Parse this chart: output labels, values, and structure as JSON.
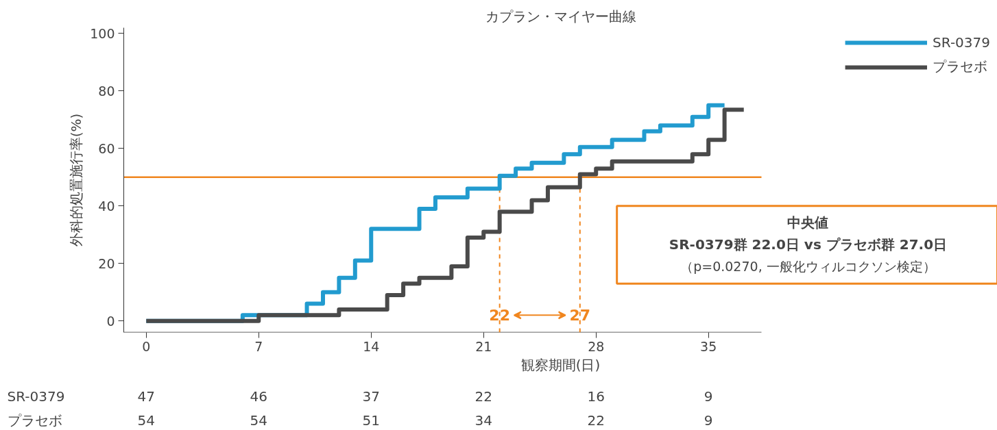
{
  "chart_data": {
    "type": "step",
    "title": "カプラン・マイヤー曲線",
    "xlabel": "観察期間(日)",
    "ylabel": "外科的処置施行率(%)",
    "series": [
      {
        "name": "SR-0379",
        "color": "#229bcf",
        "x": [
          0,
          6,
          10,
          11,
          12,
          13,
          14,
          17,
          18,
          20,
          22,
          23,
          24,
          26,
          27,
          29,
          31,
          32,
          34,
          35,
          36
        ],
        "values": [
          0,
          2,
          6,
          10,
          15,
          21,
          32,
          39,
          43,
          46,
          50.5,
          53,
          55,
          58,
          60.5,
          63,
          66,
          68,
          71,
          75,
          75
        ]
      },
      {
        "name": "プラセボ",
        "color": "#4a4a4a",
        "x": [
          0,
          7,
          12,
          15,
          16,
          17,
          19,
          20,
          21,
          22,
          24,
          25,
          27,
          28,
          29,
          34,
          35,
          36,
          37.2
        ],
        "values": [
          0,
          2,
          4,
          9,
          13,
          15,
          19,
          29,
          31,
          38,
          42,
          46.5,
          51,
          53,
          55.5,
          58,
          63,
          73.5,
          73.5
        ]
      }
    ],
    "xlim": [
      -1.4,
      38.3
    ],
    "xticks": [
      0,
      7,
      14,
      21,
      28,
      35
    ],
    "ylim": [
      -4,
      102
    ],
    "yticks": [
      0,
      20,
      40,
      60,
      80,
      100
    ],
    "grid": false,
    "legend": "top right",
    "line_style": "solid",
    "marker": "none",
    "ref_lines": [
      {
        "axis": "y",
        "value": 50,
        "color": "#f0861f",
        "line_style": "solid"
      },
      {
        "axis": "x",
        "value": 22,
        "label": "22",
        "color": "#f0861f",
        "line_style": "dashed"
      },
      {
        "axis": "x",
        "value": 27,
        "label": "27",
        "color": "#f0861f",
        "line_style": "dashed"
      }
    ],
    "annotations": [
      "中央値",
      "SR-0379群 22.0日 vs プラセボ群 27.0日",
      "（p=0.0270, 一般化ウィルコクソン検定）",
      "SR-0379",
      "47",
      "46",
      "37",
      "22",
      "16",
      "9",
      "プラセボ",
      "54",
      "54",
      "51",
      "34",
      "22",
      "9"
    ]
  }
}
